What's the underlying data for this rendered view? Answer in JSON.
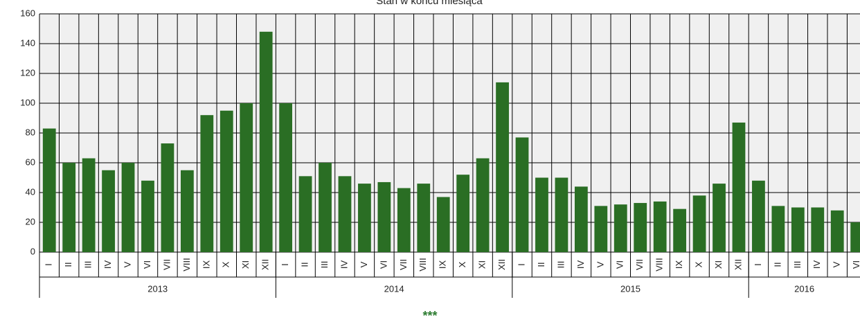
{
  "chart_data": {
    "type": "bar",
    "title": "Stan w końcu miesiąca",
    "color": "#2a6e24",
    "ylim": [
      0,
      160
    ],
    "yticks": [
      0,
      20,
      40,
      60,
      80,
      100,
      120,
      140,
      160
    ],
    "grid": true,
    "groups": [
      {
        "name": "2013",
        "categories": [
          "I",
          "II",
          "III",
          "IV",
          "V",
          "VI",
          "VII",
          "VIII",
          "IX",
          "X",
          "XI",
          "XII"
        ],
        "values": [
          83,
          60,
          63,
          55,
          60,
          48,
          73,
          55,
          92,
          95,
          100,
          148
        ]
      },
      {
        "name": "2014",
        "categories": [
          "I",
          "II",
          "III",
          "IV",
          "V",
          "VI",
          "VII",
          "VIII",
          "IX",
          "X",
          "XI",
          "XII"
        ],
        "values": [
          100,
          51,
          60,
          51,
          46,
          47,
          43,
          46,
          37,
          52,
          63,
          114
        ]
      },
      {
        "name": "2015",
        "categories": [
          "I",
          "II",
          "III",
          "IV",
          "V",
          "VI",
          "VII",
          "VIII",
          "IX",
          "X",
          "XI",
          "XII"
        ],
        "values": [
          77,
          50,
          50,
          44,
          31,
          32,
          33,
          34,
          29,
          38,
          46,
          87
        ]
      },
      {
        "name": "2016",
        "categories": [
          "I",
          "II",
          "III",
          "IV",
          "V",
          "VI"
        ],
        "values": [
          48,
          31,
          30,
          30,
          28,
          20
        ]
      }
    ]
  },
  "footer": "***"
}
